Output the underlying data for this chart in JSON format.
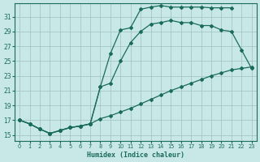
{
  "xlabel": "Humidex (Indice chaleur)",
  "bg_color": "#c8e8e8",
  "line_color": "#1a6b5a",
  "grid_color": "#a0c0c0",
  "xlim": [
    -0.5,
    23.5
  ],
  "ylim": [
    14.2,
    32.8
  ],
  "xticks": [
    0,
    1,
    2,
    3,
    4,
    5,
    6,
    7,
    8,
    9,
    10,
    11,
    12,
    13,
    14,
    15,
    16,
    17,
    18,
    19,
    20,
    21,
    22,
    23
  ],
  "yticks": [
    15,
    17,
    19,
    21,
    23,
    25,
    27,
    29,
    31
  ],
  "curve1_x": [
    0,
    1,
    2,
    3,
    4,
    5,
    6,
    7,
    8,
    9,
    10,
    11,
    12,
    13,
    14,
    15,
    16,
    17,
    18,
    19,
    20,
    21
  ],
  "curve1_y": [
    17.0,
    16.5,
    15.8,
    15.2,
    15.6,
    16.0,
    16.2,
    16.5,
    21.5,
    26.0,
    29.2,
    29.5,
    32.0,
    32.3,
    32.5,
    32.3,
    32.3,
    32.3,
    32.3,
    32.2,
    32.2,
    32.2
  ],
  "curve2_x": [
    0,
    1,
    2,
    3,
    4,
    5,
    6,
    7,
    8,
    9,
    10,
    11,
    12,
    13,
    14,
    15,
    16,
    17,
    18,
    19,
    20,
    21,
    22,
    23
  ],
  "curve2_y": [
    17.0,
    16.5,
    15.8,
    15.2,
    15.6,
    16.0,
    16.2,
    16.5,
    21.5,
    22.0,
    25.0,
    27.5,
    29.0,
    30.0,
    30.2,
    30.5,
    30.2,
    30.2,
    29.8,
    29.8,
    29.2,
    29.0,
    26.5,
    24.0
  ],
  "curve3_x": [
    0,
    1,
    2,
    3,
    4,
    5,
    6,
    7,
    8,
    9,
    10,
    11,
    12,
    13,
    14,
    15,
    16,
    17,
    18,
    19,
    20,
    21,
    22,
    23
  ],
  "curve3_y": [
    17.0,
    16.5,
    15.8,
    15.2,
    15.6,
    16.0,
    16.2,
    16.5,
    17.2,
    17.6,
    18.1,
    18.6,
    19.2,
    19.8,
    20.4,
    21.0,
    21.5,
    22.0,
    22.5,
    23.0,
    23.4,
    23.8,
    24.0,
    24.2
  ]
}
